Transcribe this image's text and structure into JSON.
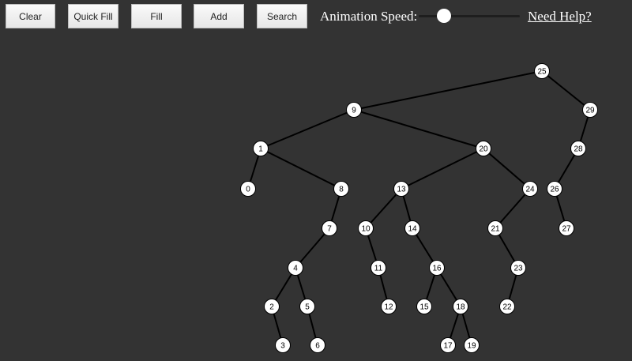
{
  "toolbar": {
    "buttons": [
      "Clear",
      "Quick Fill",
      "Fill",
      "Add",
      "Search"
    ],
    "speed_label": "Animation Speed:",
    "speed_value": 0.25,
    "help_link": "Need Help?"
  },
  "tree": {
    "node_fill": "#ffffff",
    "edge_color": "#000000",
    "background": "#333333",
    "nodes": [
      {
        "value": 25,
        "parent": null
      },
      {
        "value": 9,
        "parent": 25
      },
      {
        "value": 29,
        "parent": 25
      },
      {
        "value": 1,
        "parent": 9
      },
      {
        "value": 20,
        "parent": 9
      },
      {
        "value": 28,
        "parent": 29
      },
      {
        "value": 0,
        "parent": 1
      },
      {
        "value": 8,
        "parent": 1
      },
      {
        "value": 13,
        "parent": 20
      },
      {
        "value": 24,
        "parent": 20
      },
      {
        "value": 26,
        "parent": 28
      },
      {
        "value": 7,
        "parent": 8
      },
      {
        "value": 10,
        "parent": 13
      },
      {
        "value": 14,
        "parent": 13
      },
      {
        "value": 21,
        "parent": 24
      },
      {
        "value": 27,
        "parent": 26
      },
      {
        "value": 4,
        "parent": 7
      },
      {
        "value": 11,
        "parent": 10
      },
      {
        "value": 16,
        "parent": 14
      },
      {
        "value": 23,
        "parent": 21
      },
      {
        "value": 2,
        "parent": 4
      },
      {
        "value": 5,
        "parent": 4
      },
      {
        "value": 12,
        "parent": 11
      },
      {
        "value": 15,
        "parent": 16
      },
      {
        "value": 18,
        "parent": 16
      },
      {
        "value": 22,
        "parent": 23
      },
      {
        "value": 3,
        "parent": 2
      },
      {
        "value": 6,
        "parent": 5
      },
      {
        "value": 17,
        "parent": 18
      },
      {
        "value": 19,
        "parent": 18
      }
    ]
  }
}
